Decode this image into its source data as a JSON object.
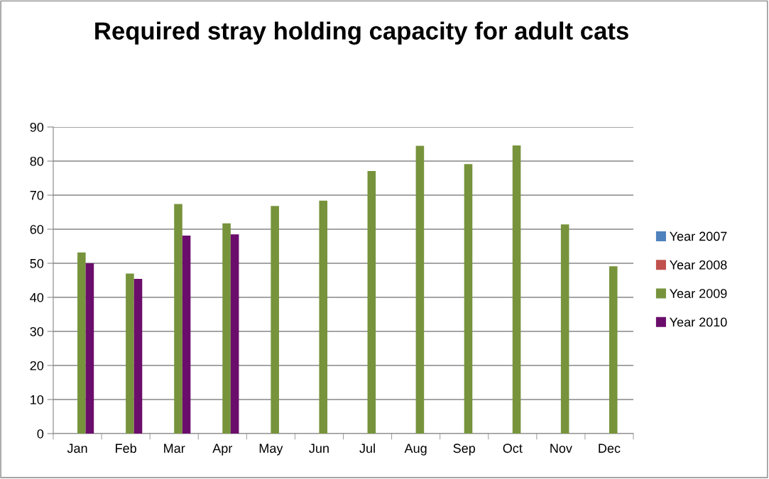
{
  "chart_data": {
    "type": "bar",
    "title": "Required stray holding capacity for adult cats",
    "categories": [
      "Jan",
      "Feb",
      "Mar",
      "Apr",
      "May",
      "Jun",
      "Jul",
      "Aug",
      "Sep",
      "Oct",
      "Nov",
      "Dec"
    ],
    "series": [
      {
        "name": "Year 2007",
        "color": "#4f81bd",
        "values": [
          null,
          null,
          null,
          null,
          null,
          null,
          null,
          null,
          null,
          null,
          null,
          null
        ]
      },
      {
        "name": "Year 2008",
        "color": "#c0504d",
        "values": [
          null,
          null,
          null,
          null,
          null,
          null,
          null,
          null,
          null,
          null,
          null,
          null
        ]
      },
      {
        "name": "Year 2009",
        "color": "#77933c",
        "values": [
          53.2,
          47,
          67.4,
          61.7,
          66.8,
          68.4,
          77.1,
          84.5,
          79.1,
          84.6,
          61.4,
          49.1
        ]
      },
      {
        "name": "Year 2010",
        "color": "#6b0d6b",
        "values": [
          50,
          45.4,
          58.1,
          58.5,
          null,
          null,
          null,
          null,
          null,
          null,
          null,
          null
        ]
      }
    ],
    "ylim": [
      0,
      90
    ],
    "yticks": [
      0,
      10,
      20,
      30,
      40,
      50,
      60,
      70,
      80,
      90
    ],
    "grid": "y",
    "legend": "right"
  }
}
